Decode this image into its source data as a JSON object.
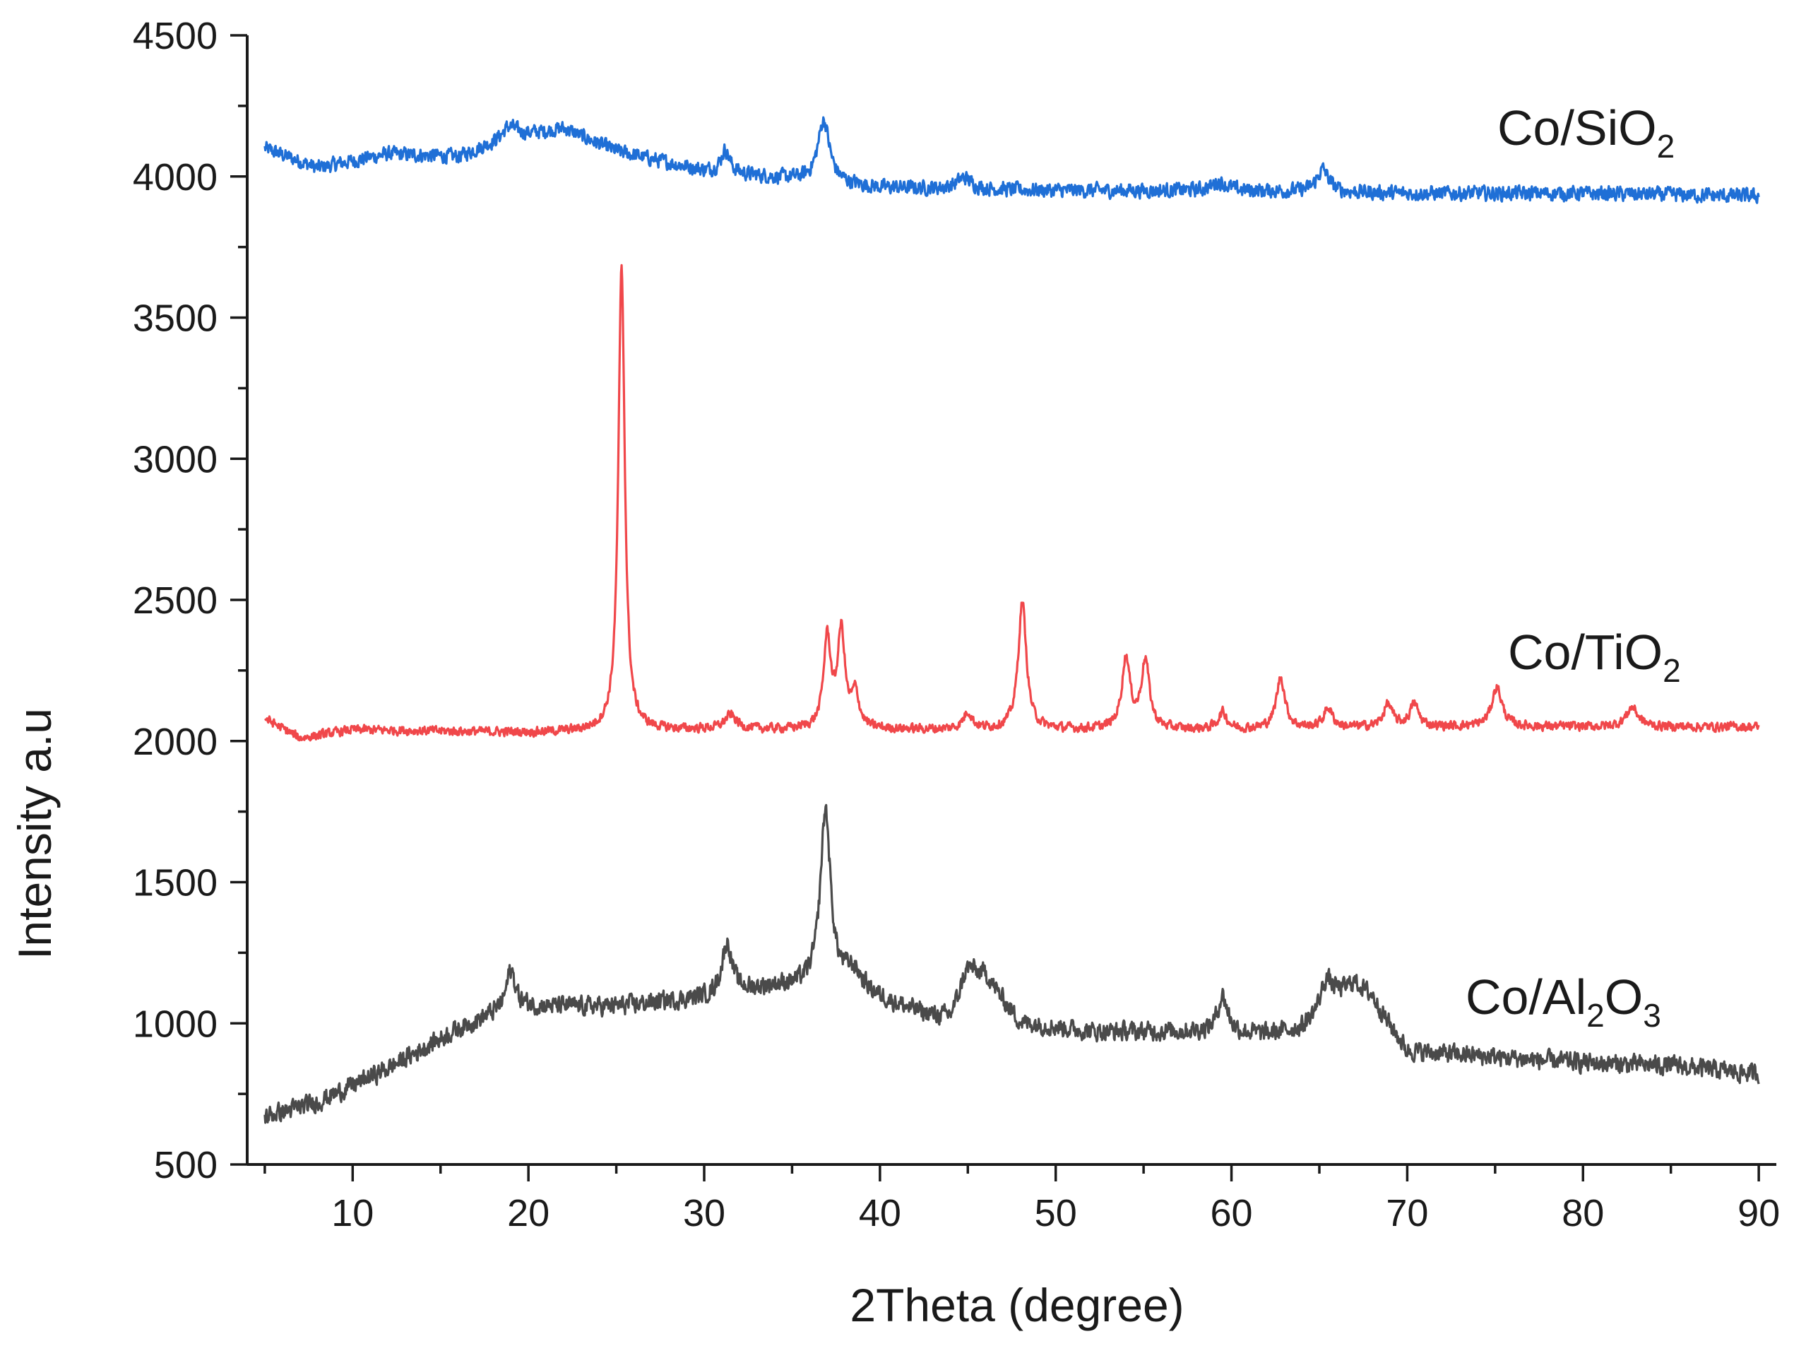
{
  "chart_data": {
    "type": "line",
    "title": "",
    "xlabel": "2Theta (degree)",
    "ylabel": "Intensity a.u",
    "xlim": [
      4,
      91
    ],
    "ylim": [
      500,
      4500
    ],
    "x_ticks": [
      10,
      20,
      30,
      40,
      50,
      60,
      70,
      80,
      90
    ],
    "y_ticks": [
      500,
      1000,
      1500,
      2000,
      2500,
      3000,
      3500,
      4000,
      4500
    ],
    "x_tick_labels": [
      "10",
      "20",
      "30",
      "40",
      "50",
      "60",
      "70",
      "80",
      "90"
    ],
    "y_tick_labels": [
      "500",
      "1000",
      "1500",
      "2000",
      "2500",
      "3000",
      "3500",
      "4000",
      "4500"
    ],
    "legend": "inline labels at right end of each trace",
    "series": [
      {
        "name": "Co/SiO2",
        "label_main": "Co/SiO",
        "label_sub": "2",
        "color": "#1f6fd6",
        "x_range": [
          5,
          90
        ],
        "noise_amplitude": 35,
        "baseline": [
          [
            5,
            4100
          ],
          [
            8,
            4030
          ],
          [
            12,
            4080
          ],
          [
            16,
            4070
          ],
          [
            19,
            4140
          ],
          [
            22,
            4170
          ],
          [
            25,
            4090
          ],
          [
            30,
            4020
          ],
          [
            35,
            3990
          ],
          [
            40,
            3960
          ],
          [
            50,
            3950
          ],
          [
            60,
            3950
          ],
          [
            70,
            3940
          ],
          [
            80,
            3940
          ],
          [
            90,
            3930
          ]
        ],
        "peaks": [
          [
            18.9,
            40,
            0.5
          ],
          [
            31.2,
            80,
            0.3
          ],
          [
            36.8,
            220,
            0.4
          ],
          [
            44.8,
            40,
            0.5
          ],
          [
            59.3,
            30,
            0.5
          ],
          [
            65.2,
            80,
            0.4
          ]
        ]
      },
      {
        "name": "Co/TiO2",
        "label_main": "Co/TiO",
        "label_sub": "2",
        "color": "#f0474a",
        "x_range": [
          5,
          90
        ],
        "noise_amplitude": 22,
        "baseline": [
          [
            5,
            2080
          ],
          [
            7,
            2010
          ],
          [
            10,
            2040
          ],
          [
            20,
            2030
          ],
          [
            30,
            2040
          ],
          [
            40,
            2040
          ],
          [
            50,
            2040
          ],
          [
            60,
            2040
          ],
          [
            70,
            2050
          ],
          [
            80,
            2050
          ],
          [
            90,
            2050
          ]
        ],
        "peaks": [
          [
            25.3,
            1640,
            0.22
          ],
          [
            31.5,
            50,
            0.4
          ],
          [
            37.0,
            320,
            0.25
          ],
          [
            37.8,
            340,
            0.25
          ],
          [
            38.6,
            120,
            0.25
          ],
          [
            45.0,
            60,
            0.3
          ],
          [
            48.1,
            450,
            0.28
          ],
          [
            54.0,
            250,
            0.28
          ],
          [
            55.1,
            240,
            0.28
          ],
          [
            59.5,
            60,
            0.3
          ],
          [
            62.8,
            180,
            0.3
          ],
          [
            65.5,
            70,
            0.3
          ],
          [
            68.9,
            80,
            0.3
          ],
          [
            70.4,
            80,
            0.3
          ],
          [
            75.1,
            140,
            0.35
          ],
          [
            82.8,
            70,
            0.4
          ]
        ]
      },
      {
        "name": "Co/Al2O3",
        "label_main": "Co/Al",
        "label_sub1": "2",
        "label_mid": "O",
        "label_sub2": "3",
        "color": "#4a4a4a",
        "x_range": [
          5,
          90
        ],
        "noise_amplitude": 45,
        "baseline": [
          [
            5,
            670
          ],
          [
            8,
            720
          ],
          [
            12,
            840
          ],
          [
            16,
            980
          ],
          [
            19,
            1060
          ],
          [
            25,
            1060
          ],
          [
            30,
            1090
          ],
          [
            34,
            1130
          ],
          [
            38,
            1130
          ],
          [
            42,
            1040
          ],
          [
            44,
            1000
          ],
          [
            46,
            1150
          ],
          [
            48,
            1000
          ],
          [
            52,
            970
          ],
          [
            58,
            970
          ],
          [
            62,
            960
          ],
          [
            64,
            980
          ],
          [
            66,
            1080
          ],
          [
            68,
            1080
          ],
          [
            70,
            900
          ],
          [
            75,
            880
          ],
          [
            80,
            860
          ],
          [
            85,
            850
          ],
          [
            90,
            820
          ]
        ],
        "peaks": [
          [
            19.0,
            130,
            0.3
          ],
          [
            31.3,
            180,
            0.35
          ],
          [
            36.9,
            620,
            0.35
          ],
          [
            38.5,
            60,
            0.6
          ],
          [
            45.0,
            120,
            0.6
          ],
          [
            59.5,
            130,
            0.35
          ],
          [
            65.4,
            100,
            0.4
          ],
          [
            67.0,
            60,
            0.7
          ]
        ]
      }
    ]
  }
}
